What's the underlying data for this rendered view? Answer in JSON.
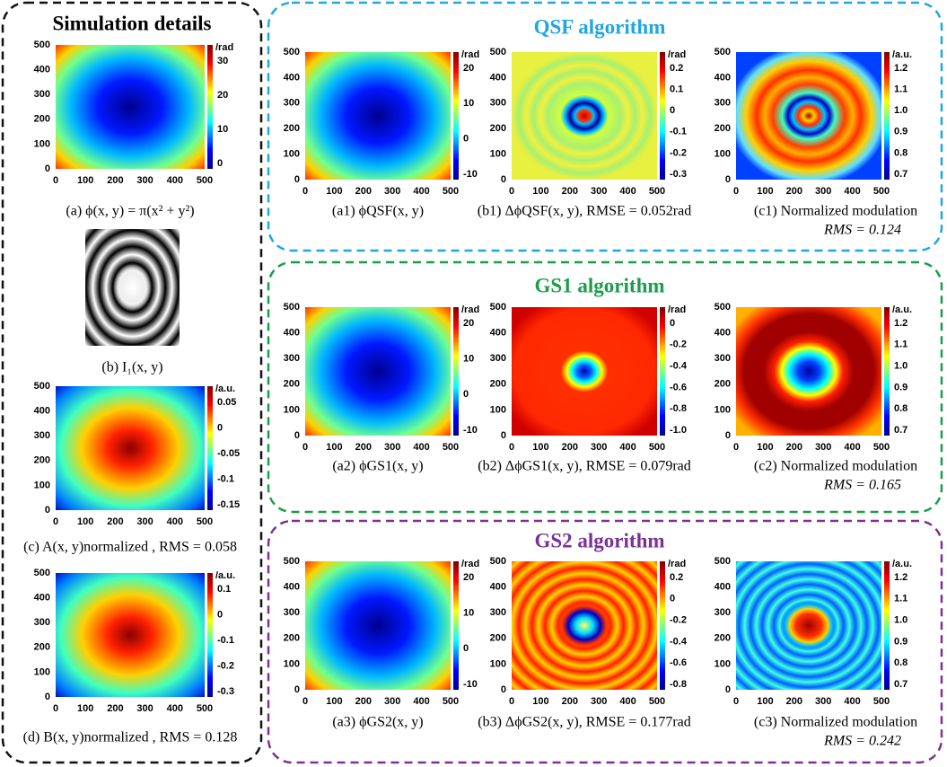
{
  "sections": {
    "simulation": "Simulation details",
    "qsf": "QSF algorithm",
    "gs1": "GS1 algorithm",
    "gs2": "GS2 algorithm"
  },
  "axis_ticks": [
    0,
    100,
    200,
    300,
    400,
    500
  ],
  "panels": [
    {
      "caption": "(a) ϕ(x, y) = π(x² + y²)",
      "unit": "/rad",
      "colorbar": [
        "30",
        "20",
        "10",
        "0"
      ]
    },
    {
      "caption": "(b) I₁(x, y)"
    },
    {
      "caption": "(c) A(x, y)normalized , RMS = 0.058",
      "unit": "/a.u.",
      "colorbar": [
        "0.05",
        "0",
        "-0.05",
        "-0.1",
        "-0.15"
      ]
    },
    {
      "caption": "(d) B(x, y)normalized , RMS = 0.128",
      "unit": "/a.u.",
      "colorbar": [
        "0.1",
        "0",
        "-0.1",
        "-0.2",
        "-0.3"
      ]
    },
    {
      "caption": "(a1) ϕQSF(x, y)",
      "unit": "/rad",
      "colorbar": [
        "20",
        "10",
        "0",
        "-10"
      ]
    },
    {
      "caption": "(b1) ΔϕQSF(x, y), RMSE = 0.052rad",
      "unit": "/rad",
      "colorbar": [
        "0.2",
        "0.1",
        "0",
        "-0.1",
        "-0.2",
        "-0.3"
      ]
    },
    {
      "caption": "(c1) Normalized modulation",
      "caption2": "RMS = 0.124",
      "unit": "/a.u.",
      "colorbar": [
        "1.2",
        "1.1",
        "1.0",
        "0.9",
        "0.8",
        "0.7"
      ]
    },
    {
      "caption": "(a2) ϕGS1(x, y)",
      "unit": "/rad",
      "colorbar": [
        "20",
        "10",
        "0",
        "-10"
      ]
    },
    {
      "caption": "(b2) ΔϕGS1(x, y), RMSE = 0.079rad",
      "unit": "/rad",
      "colorbar": [
        "0",
        "-0.2",
        "-0.4",
        "-0.6",
        "-0.8",
        "-1.0"
      ]
    },
    {
      "caption": "(c2) Normalized modulation",
      "caption2": "RMS = 0.165",
      "unit": "/a.u.",
      "colorbar": [
        "1.2",
        "1.1",
        "1.0",
        "0.9",
        "0.8",
        "0.7"
      ]
    },
    {
      "caption": "(a3) ϕGS2(x, y)",
      "unit": "/rad",
      "colorbar": [
        "20",
        "10",
        "0",
        "-10"
      ]
    },
    {
      "caption": "(b3) ΔϕGS2(x, y), RMSE = 0.177rad",
      "unit": "/rad",
      "colorbar": [
        "0.2",
        "0",
        "-0.2",
        "-0.4",
        "-0.6",
        "-0.8"
      ]
    },
    {
      "caption": "(c3) Normalized modulation",
      "caption2": "RMS = 0.242",
      "unit": "/a.u.",
      "colorbar": [
        "1.2",
        "1.1",
        "1.0",
        "0.9",
        "0.8",
        "0.7"
      ]
    }
  ]
}
